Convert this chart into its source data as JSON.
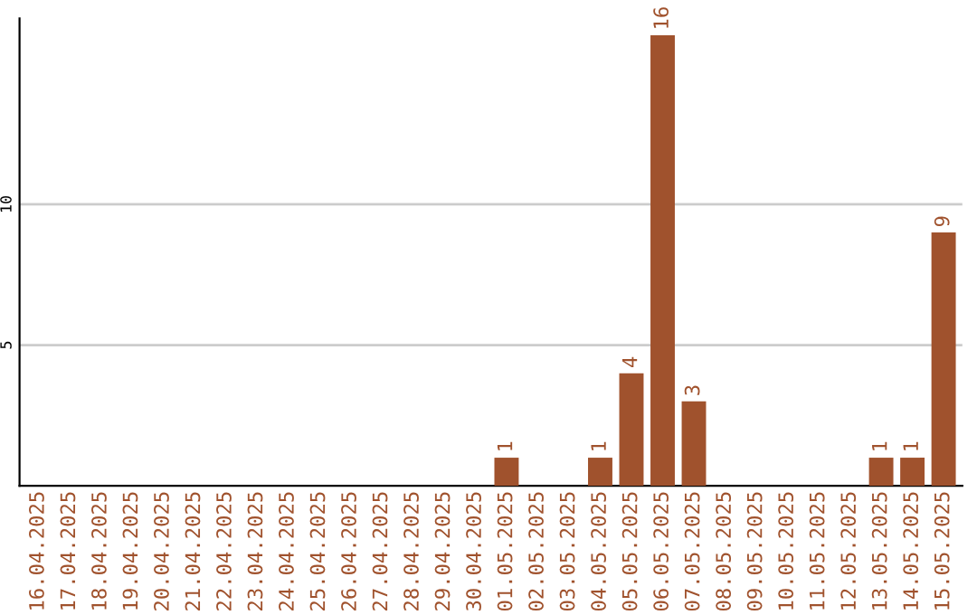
{
  "chart_data": {
    "type": "bar",
    "categories": [
      "16.04.2025",
      "17.04.2025",
      "18.04.2025",
      "19.04.2025",
      "20.04.2025",
      "21.04.2025",
      "22.04.2025",
      "23.04.2025",
      "24.04.2025",
      "25.04.2025",
      "26.04.2025",
      "27.04.2025",
      "28.04.2025",
      "29.04.2025",
      "30.04.2025",
      "01.05.2025",
      "02.05.2025",
      "03.05.2025",
      "04.05.2025",
      "05.05.2025",
      "06.05.2025",
      "07.05.2025",
      "08.05.2025",
      "09.05.2025",
      "10.05.2025",
      "11.05.2025",
      "12.05.2025",
      "13.05.2025",
      "14.05.2025",
      "15.05.2025"
    ],
    "values": [
      0,
      0,
      0,
      0,
      0,
      0,
      0,
      0,
      0,
      0,
      0,
      0,
      0,
      0,
      0,
      1,
      0,
      0,
      1,
      4,
      16,
      3,
      0,
      0,
      0,
      0,
      0,
      1,
      1,
      9
    ],
    "value_labels": [
      null,
      null,
      null,
      null,
      null,
      null,
      null,
      null,
      null,
      null,
      null,
      null,
      null,
      null,
      null,
      "1",
      null,
      null,
      "1",
      "4",
      "16",
      "3",
      null,
      null,
      null,
      null,
      null,
      "1",
      "1",
      "9"
    ],
    "color": "#a0522d",
    "ylim": [
      0,
      16.6
    ],
    "yticks": [
      5,
      10
    ],
    "grid": "y"
  }
}
